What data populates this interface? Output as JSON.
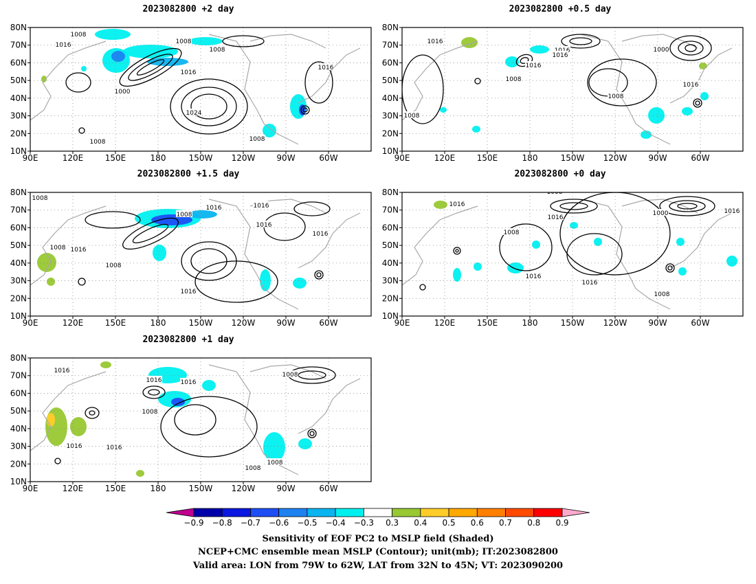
{
  "panels": [
    {
      "title": "2023082800  +2 day",
      "slot": 0,
      "contour_labels": [
        "1008",
        "1016",
        "1008",
        "1008",
        "1016",
        "1000",
        "1024",
        "1016",
        "1008",
        "1008"
      ]
    },
    {
      "title": "2023082800  +0.5 day",
      "slot": 1,
      "contour_labels": [
        "1008",
        "1016",
        "1008",
        "1016",
        "1016",
        "1008",
        "1000",
        "1016",
        "1016",
        "1008"
      ]
    },
    {
      "title": "2023082800  +1.5 day",
      "slot": 2,
      "contour_labels": [
        "1008",
        "1008",
        "1016",
        "1008",
        "1016",
        "1016",
        "1008",
        "1016",
        "1016",
        "1016"
      ]
    },
    {
      "title": "2023082800  +0 day",
      "slot": 3,
      "contour_labels": [
        "1008",
        "1016",
        "1008",
        "1016",
        "1008",
        "1000",
        "1016",
        "1016",
        "1008",
        "1008",
        "1016"
      ]
    },
    {
      "title": "2023082800  +1 day",
      "slot": 4,
      "contour_labels": [
        "1008",
        "1016",
        "1016",
        "1016",
        "1008",
        "1008",
        "1016",
        "1016",
        "1008",
        "1008"
      ]
    }
  ],
  "axes": {
    "lat_labels": [
      "10N",
      "20N",
      "30N",
      "40N",
      "50N",
      "60N",
      "70N",
      "80N"
    ],
    "lon_labels": [
      "90E",
      "120E",
      "150E",
      "180",
      "150W",
      "120W",
      "90W",
      "60W"
    ]
  },
  "colorbar": {
    "ticks": [
      "−0.9",
      "−0.8",
      "−0.7",
      "−0.6",
      "−0.5",
      "−0.4",
      "−0.3",
      "0.3",
      "0.4",
      "0.5",
      "0.6",
      "0.7",
      "0.8",
      "0.9"
    ],
    "colors": [
      "#c00090",
      "#0000a8",
      "#0a18e0",
      "#1e4ef4",
      "#1e82f0",
      "#0ab4f0",
      "#00f0f0",
      "#ffffff",
      "#98c832",
      "#ffcc2a",
      "#ffa800",
      "#ff8000",
      "#ff4a00",
      "#ff0000",
      "#ffaacc"
    ]
  },
  "caption": {
    "line1": "Sensitivity of EOF PC2 to MSLP field (Shaded)",
    "line2": "NCEP+CMC ensemble mean MSLP (Contour); unit(mb); IT:2023082800",
    "line3": "Valid area: LON from 79W to 62W, LAT from 32N to 45N; VT: 2023090200"
  }
}
